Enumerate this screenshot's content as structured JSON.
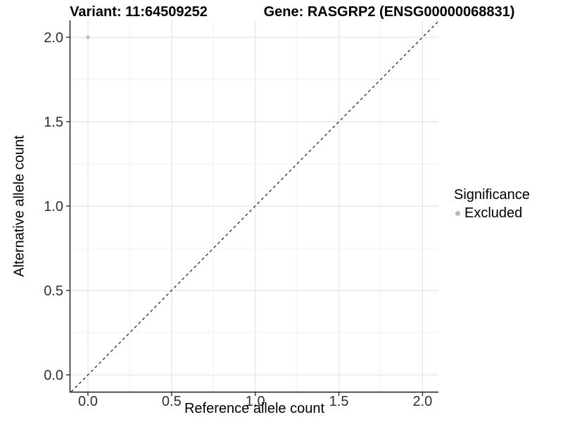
{
  "chart_data": {
    "type": "scatter",
    "title_left": "Variant: 11:64509252",
    "title_right": "Gene: RASGRP2 (ENSG00000068831)",
    "xlabel": "Reference allele count",
    "ylabel": "Alternative allele count",
    "xlim": [
      -0.105,
      2.095
    ],
    "ylim": [
      -0.1,
      2.1
    ],
    "x_ticks": [
      0.0,
      0.5,
      1.0,
      1.5,
      2.0
    ],
    "y_ticks": [
      0.0,
      0.5,
      1.0,
      1.5,
      2.0
    ],
    "x_tick_labels": [
      "0.0",
      "0.5",
      "1.0",
      "1.5",
      "2.0"
    ],
    "y_tick_labels": [
      "0.0",
      "0.5",
      "1.0",
      "1.5",
      "2.0"
    ],
    "minor_ticks": [
      0.25,
      0.75,
      1.25,
      1.75
    ],
    "grid": true,
    "reference_line": {
      "type": "identity",
      "style": "dashed",
      "color": "#000000"
    },
    "series": [
      {
        "name": "Excluded",
        "color": "#b9b9b9",
        "points": [
          {
            "x": 0.0,
            "y": 2.0
          }
        ]
      }
    ],
    "legend": {
      "title": "Significance",
      "position": "right",
      "entries": [
        {
          "label": "Excluded",
          "color": "#b9b9b9"
        }
      ]
    }
  },
  "colors": {
    "grid_major": "#e4e4e4",
    "grid_minor": "#f1f1f1",
    "axis_line": "#1a1a1a",
    "tick_mark": "#333333",
    "tick_label": "#303030",
    "point": "#b9b9b9"
  }
}
